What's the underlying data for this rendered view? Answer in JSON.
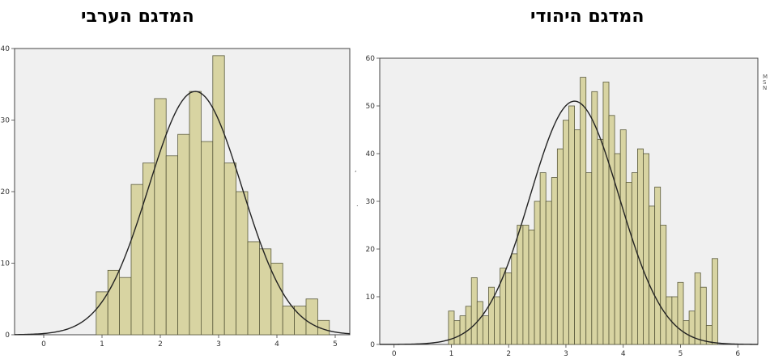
{
  "chart_data": [
    {
      "type": "bar",
      "title": "המדגם הערבי",
      "xlabel": "",
      "ylabel": "",
      "xlim": [
        -0.5,
        5.25
      ],
      "ylim": [
        0,
        40
      ],
      "x_ticks": [
        "0",
        "1",
        "2",
        "3",
        "4",
        "5"
      ],
      "y_ticks": [
        "0",
        "10",
        "20",
        "30",
        "40"
      ],
      "bin_width": 0.2,
      "bin_start": 0.9,
      "values": [
        6,
        9,
        8,
        21,
        24,
        33,
        25,
        28,
        34,
        27,
        39,
        24,
        20,
        13,
        12,
        10,
        4,
        4,
        5,
        2
      ],
      "normal_curve": {
        "peak": 34,
        "mean": 2.6,
        "sd": 0.8
      },
      "grid": false,
      "colors": {
        "bar": "#d8d4a2",
        "bar_edge": "#5a5a3c",
        "curve": "#222222",
        "plot_bg": "#f0f0f0"
      }
    },
    {
      "type": "bar",
      "title": "המדגם היהודי",
      "xlabel": "",
      "ylabel": "",
      "xlim": [
        -0.25,
        6.35
      ],
      "ylim": [
        0,
        60
      ],
      "x_ticks": [
        "0",
        "1",
        "2",
        "3",
        "4",
        "5",
        "6"
      ],
      "y_ticks": [
        "0",
        "10",
        "20",
        "30",
        "40",
        "50",
        "60"
      ],
      "bin_width": 0.1,
      "bin_start": 0.95,
      "values": [
        7,
        5,
        6,
        8,
        14,
        9,
        6,
        12,
        10,
        16,
        15,
        19,
        25,
        25,
        24,
        30,
        36,
        30,
        35,
        41,
        47,
        50,
        45,
        56,
        36,
        53,
        43,
        55,
        48,
        40,
        45,
        34,
        36,
        41,
        40,
        29,
        33,
        25,
        10,
        10,
        13,
        5,
        7,
        15,
        12,
        4,
        18
      ],
      "normal_curve": {
        "peak": 51,
        "mean": 3.15,
        "sd": 0.78
      },
      "grid": false,
      "colors": {
        "bar": "#d8d4a2",
        "bar_edge": "#5a5a3c",
        "curve": "#222222",
        "plot_bg": "#f0f0f0"
      }
    }
  ],
  "side_note": "M\nS\nN",
  "stray_marks": [
    ",",
    "."
  ]
}
